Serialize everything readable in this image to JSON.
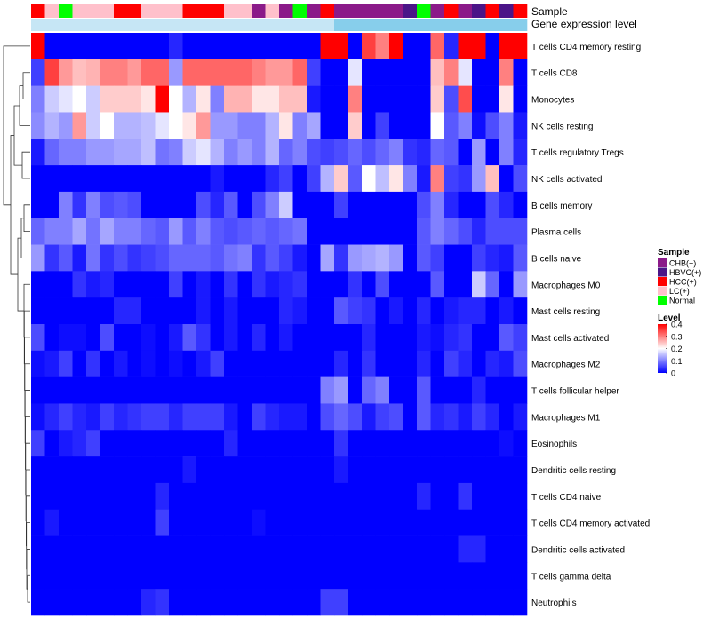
{
  "chart_data": {
    "type": "heatmap",
    "title": "",
    "annotation_titles": {
      "sample": "Sample",
      "expression": "Gene expression level"
    },
    "rows": [
      "T cells CD4 memory resting",
      "T cells CD8",
      "Monocytes",
      "NK cells resting",
      "T cells regulatory  Tregs",
      "NK cells activated",
      "B cells memory",
      "Plasma cells",
      "B cells naive",
      "Macrophages M0",
      "Mast cells resting",
      "Mast cells activated",
      "Macrophages M2",
      "T cells follicular helper",
      "Macrophages M1",
      "Eosinophils",
      "Dendritic cells resting",
      "T cells CD4 naive",
      "T cells CD4 memory activated",
      "Dendritic cells activated",
      "T cells gamma delta",
      "Neutrophils"
    ],
    "sample_groups": [
      "HCC(+)",
      "LC(+)",
      "Normal",
      "LC(+)",
      "LC(+)",
      "LC(+)",
      "HCC(+)",
      "HCC(+)",
      "LC(+)",
      "LC(+)",
      "LC(+)",
      "HCC(+)",
      "HCC(+)",
      "HCC(+)",
      "LC(+)",
      "LC(+)",
      "CHB(+)",
      "LC(+)",
      "CHB(+)",
      "Normal",
      "CHB(+)",
      "HCC(+)",
      "CHB(+)",
      "CHB(+)",
      "CHB(+)",
      "CHB(+)",
      "CHB(+)",
      "HBVC(+)",
      "Normal",
      "CHB(+)",
      "HCC(+)",
      "CHB(+)",
      "HBVC(+)",
      "HCC(+)",
      "HBVC(+)",
      "HCC(+)"
    ],
    "expression_levels": [
      0.1,
      0.1,
      0.1,
      0.1,
      0.1,
      0.1,
      0.1,
      0.1,
      0.1,
      0.1,
      0.1,
      0.1,
      0.1,
      0.1,
      0.1,
      0.1,
      0.1,
      0.1,
      0.1,
      0.1,
      0.1,
      0.1,
      0.15,
      0.15,
      0.15,
      0.15,
      0.15,
      0.15,
      0.15,
      0.15,
      0.15,
      0.15,
      0.15,
      0.15,
      0.15,
      0.15
    ],
    "values": [
      [
        0.4,
        0,
        0,
        0,
        0,
        0,
        0,
        0,
        0,
        0,
        0.03,
        0,
        0,
        0,
        0,
        0,
        0,
        0,
        0,
        0,
        0,
        0.4,
        0.4,
        0,
        0.35,
        0.3,
        0.4,
        0,
        0,
        0.32,
        0.03,
        0.4,
        0.4,
        0,
        0.4,
        0.4
      ],
      [
        0.05,
        0.35,
        0.28,
        0.25,
        0.26,
        0.3,
        0.3,
        0.28,
        0.32,
        0.32,
        0.12,
        0.32,
        0.32,
        0.32,
        0.32,
        0.32,
        0.3,
        0.28,
        0.28,
        0.32,
        0.05,
        0,
        0,
        0.18,
        0,
        0,
        0,
        0,
        0,
        0.25,
        0.3,
        0.18,
        0,
        0,
        0.3,
        0
      ],
      [
        0.1,
        0.16,
        0.18,
        0.2,
        0.16,
        0.24,
        0.24,
        0.24,
        0.22,
        0.4,
        0.2,
        0.14,
        0.22,
        0.1,
        0.26,
        0.26,
        0.22,
        0.22,
        0.25,
        0.25,
        0.02,
        0,
        0,
        0.3,
        0,
        0,
        0,
        0,
        0,
        0.24,
        0.06,
        0.34,
        0,
        0,
        0.22,
        0
      ],
      [
        0.11,
        0.14,
        0.12,
        0.28,
        0.16,
        0.2,
        0.14,
        0.14,
        0.15,
        0.18,
        0.2,
        0.22,
        0.28,
        0.12,
        0.12,
        0.1,
        0.1,
        0.14,
        0.22,
        0.1,
        0.13,
        0,
        0,
        0.24,
        0,
        0.05,
        0,
        0,
        0,
        0.2,
        0.07,
        0.1,
        0.01,
        0.06,
        0.1,
        0.02
      ],
      [
        0.02,
        0.08,
        0.1,
        0.1,
        0.12,
        0.12,
        0.13,
        0.13,
        0.15,
        0.09,
        0.1,
        0.16,
        0.18,
        0.14,
        0.1,
        0.12,
        0.1,
        0.14,
        0.08,
        0.1,
        0.06,
        0.05,
        0.06,
        0.08,
        0.06,
        0.08,
        0.1,
        0.04,
        0.03,
        0.08,
        0.07,
        0,
        0.12,
        0,
        0.1,
        0.03
      ],
      [
        0,
        0,
        0,
        0,
        0,
        0,
        0,
        0,
        0,
        0,
        0,
        0,
        0,
        0.02,
        0,
        0,
        0,
        0.03,
        0.05,
        0,
        0.05,
        0.14,
        0.24,
        0.07,
        0.2,
        0.15,
        0.22,
        0.1,
        0.02,
        0.3,
        0.05,
        0.04,
        0.12,
        0.25,
        0,
        0.06
      ],
      [
        0,
        0,
        0.1,
        0.04,
        0.1,
        0.06,
        0.07,
        0.06,
        0,
        0,
        0,
        0,
        0.06,
        0.03,
        0.07,
        0,
        0.06,
        0.1,
        0.16,
        0,
        0,
        0,
        0.05,
        0,
        0,
        0,
        0,
        0,
        0.06,
        0.1,
        0.03,
        0,
        0,
        0.06,
        0.03,
        0
      ],
      [
        0.08,
        0.1,
        0.1,
        0.13,
        0.09,
        0.13,
        0.1,
        0.1,
        0.08,
        0.07,
        0.12,
        0.07,
        0.1,
        0.07,
        0.06,
        0.07,
        0.08,
        0.07,
        0.08,
        0.09,
        0,
        0,
        0,
        0,
        0,
        0,
        0,
        0,
        0.07,
        0.1,
        0.08,
        0.06,
        0.03,
        0.06,
        0.06,
        0.06
      ],
      [
        0.12,
        0.04,
        0.07,
        0.02,
        0.09,
        0.04,
        0.06,
        0.04,
        0.05,
        0.06,
        0.08,
        0.08,
        0.08,
        0.07,
        0.09,
        0.1,
        0.04,
        0.07,
        0.05,
        0.02,
        0,
        0.13,
        0.04,
        0.12,
        0.13,
        0.14,
        0.12,
        0,
        0.07,
        0.05,
        0,
        0,
        0.05,
        0.03,
        0.02,
        0.07
      ],
      [
        0,
        0,
        0,
        0.04,
        0.02,
        0.03,
        0,
        0,
        0,
        0,
        0.05,
        0,
        0.02,
        0,
        0.04,
        0,
        0.04,
        0.02,
        0.03,
        0.04,
        0,
        0,
        0,
        0.04,
        0,
        0.06,
        0,
        0,
        0,
        0.07,
        0,
        0,
        0.16,
        0.08,
        0,
        0.12
      ],
      [
        0,
        0,
        0,
        0,
        0,
        0,
        0.03,
        0.03,
        0,
        0,
        0,
        0,
        0.02,
        0,
        0.02,
        0,
        0,
        0,
        0.03,
        0.02,
        0,
        0,
        0.07,
        0.05,
        0.04,
        0,
        0.02,
        0,
        0.03,
        0,
        0.02,
        0.03,
        0.03,
        0,
        0.02,
        0
      ],
      [
        0.06,
        0,
        0.01,
        0.01,
        0,
        0.06,
        0,
        0,
        0.01,
        0,
        0.02,
        0.07,
        0.04,
        0,
        0.02,
        0,
        0.03,
        0,
        0.02,
        0,
        0,
        0,
        0,
        0,
        0.03,
        0,
        0,
        0,
        0.02,
        0.01,
        0.03,
        0.04,
        0,
        0,
        0.07,
        0.05
      ],
      [
        0.01,
        0.02,
        0.05,
        0,
        0.04,
        0,
        0.02,
        0,
        0.01,
        0,
        0.01,
        0,
        0.02,
        0.05,
        0,
        0,
        0,
        0,
        0,
        0,
        0,
        0,
        0.03,
        0,
        0.04,
        0,
        0,
        0,
        0.03,
        0,
        0.05,
        0.03,
        0,
        0.03,
        0.02,
        0.06
      ],
      [
        0,
        0,
        0,
        0,
        0,
        0,
        0,
        0,
        0,
        0,
        0,
        0,
        0,
        0,
        0,
        0,
        0,
        0,
        0,
        0,
        0,
        0.1,
        0.12,
        0,
        0.08,
        0.1,
        0,
        0,
        0.07,
        0,
        0,
        0,
        0.03,
        0,
        0,
        0
      ],
      [
        0.01,
        0.03,
        0.05,
        0.03,
        0.02,
        0.05,
        0.03,
        0.04,
        0.05,
        0.05,
        0.03,
        0.05,
        0.05,
        0.05,
        0.02,
        0,
        0.05,
        0.03,
        0.02,
        0.02,
        0,
        0.06,
        0.08,
        0.06,
        0.02,
        0.05,
        0.06,
        0,
        0.07,
        0.03,
        0.04,
        0.02,
        0.05,
        0.03,
        0,
        0.02
      ],
      [
        0.05,
        0,
        0.02,
        0.03,
        0.05,
        0,
        0,
        0,
        0,
        0,
        0,
        0,
        0,
        0,
        0.03,
        0,
        0,
        0,
        0,
        0,
        0,
        0,
        0.04,
        0,
        0,
        0,
        0,
        0,
        0,
        0,
        0,
        0,
        0,
        0,
        0.01,
        0
      ],
      [
        0,
        0,
        0,
        0,
        0,
        0,
        0,
        0,
        0,
        0,
        0,
        0.02,
        0,
        0,
        0,
        0,
        0,
        0,
        0,
        0,
        0,
        0,
        0.02,
        0,
        0,
        0,
        0,
        0,
        0,
        0,
        0,
        0,
        0,
        0,
        0,
        0
      ],
      [
        0,
        0,
        0,
        0,
        0,
        0,
        0,
        0,
        0,
        0.03,
        0,
        0,
        0,
        0,
        0,
        0,
        0,
        0,
        0,
        0,
        0,
        0,
        0,
        0,
        0,
        0,
        0,
        0,
        0.03,
        0,
        0,
        0.04,
        0,
        0,
        0,
        0
      ],
      [
        0,
        0.02,
        0,
        0,
        0,
        0,
        0,
        0,
        0,
        0.05,
        0,
        0,
        0,
        0,
        0,
        0,
        0.01,
        0,
        0,
        0,
        0,
        0,
        0,
        0,
        0,
        0,
        0,
        0,
        0,
        0,
        0,
        0,
        0,
        0,
        0,
        0
      ],
      [
        0,
        0,
        0,
        0,
        0,
        0,
        0,
        0,
        0,
        0,
        0,
        0,
        0,
        0,
        0,
        0,
        0,
        0,
        0,
        0,
        0,
        0,
        0,
        0,
        0,
        0,
        0,
        0,
        0,
        0,
        0,
        0.03,
        0.03,
        0,
        0,
        0
      ],
      [
        0,
        0,
        0,
        0,
        0,
        0,
        0,
        0,
        0,
        0,
        0,
        0,
        0,
        0,
        0,
        0,
        0,
        0,
        0,
        0,
        0,
        0,
        0,
        0,
        0,
        0,
        0,
        0,
        0,
        0,
        0,
        0,
        0,
        0,
        0,
        0
      ],
      [
        0,
        0,
        0,
        0,
        0,
        0,
        0,
        0,
        0.03,
        0.04,
        0,
        0,
        0,
        0,
        0,
        0,
        0,
        0,
        0,
        0,
        0,
        0.05,
        0.05,
        0,
        0,
        0,
        0,
        0,
        0,
        0,
        0,
        0,
        0,
        0,
        0,
        0
      ]
    ],
    "legend_sample": {
      "title": "Sample",
      "items": [
        {
          "label": "CHB(+)",
          "color": "#8B1A89"
        },
        {
          "label": "HBVC(+)",
          "color": "#4B1588"
        },
        {
          "label": "HCC(+)",
          "color": "#FF0000"
        },
        {
          "label": "LC(+)",
          "color": "#FFC0CB"
        },
        {
          "label": "Normal",
          "color": "#00FF00"
        }
      ]
    },
    "legend_level": {
      "title": "Level",
      "ticks": [
        "0.4",
        "0.3",
        "0.2",
        "0.1",
        "0"
      ],
      "range": [
        0,
        0.4
      ]
    },
    "colors": {
      "low": "#0000FF",
      "mid": "#FFFFFF",
      "high": "#FF0000",
      "expression_bar": "#87CEEB",
      "expression_bar_light": "#C6E6F5"
    }
  }
}
